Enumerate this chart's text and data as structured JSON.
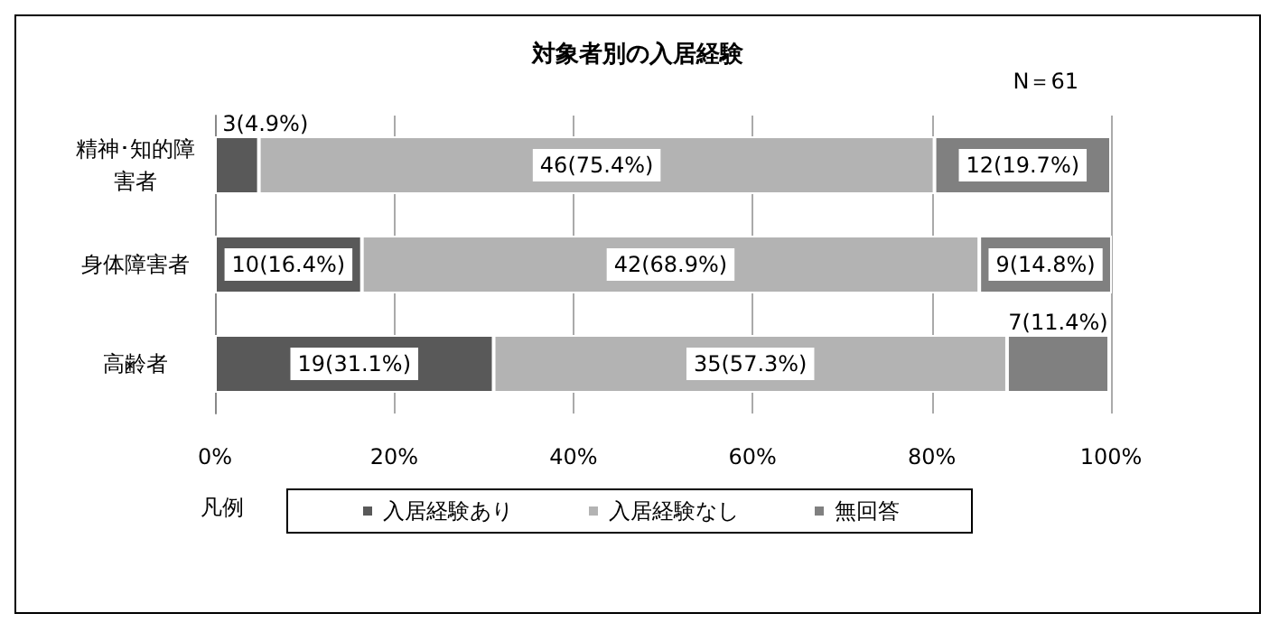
{
  "chart_data": {
    "type": "bar",
    "orientation": "horizontal",
    "stacked": true,
    "title": "対象者別の入居経験",
    "annotations": [
      "N＝61"
    ],
    "categories": [
      "精神･知的障害者",
      "身体障害者",
      "高齢者"
    ],
    "series": [
      {
        "name": "入居経験あり",
        "color": "#595959",
        "values": [
          4.9,
          16.4,
          31.1
        ],
        "value_labels": [
          "3(4.9%)",
          "10(16.4%)",
          "19(31.1%)"
        ]
      },
      {
        "name": "入居経験なし",
        "color": "#b3b3b3",
        "values": [
          75.4,
          68.9,
          57.3
        ],
        "value_labels": [
          "46(75.4%)",
          "42(68.9%)",
          "35(57.3%)"
        ]
      },
      {
        "name": "無回答",
        "color": "#808080",
        "values": [
          19.7,
          14.8,
          11.4
        ],
        "value_labels": [
          "12(19.7%)",
          "9(14.8%)",
          "7(11.4%)"
        ]
      }
    ],
    "xlim": [
      0,
      100
    ],
    "xticks": [
      {
        "value": 0,
        "label": "0%"
      },
      {
        "value": 20,
        "label": "20%"
      },
      {
        "value": 40,
        "label": "40%"
      },
      {
        "value": 60,
        "label": "60%"
      },
      {
        "value": 80,
        "label": "80%"
      },
      {
        "value": 100,
        "label": "100%"
      }
    ],
    "grid": "x",
    "legend": "bottom",
    "legend_title": "凡例"
  }
}
